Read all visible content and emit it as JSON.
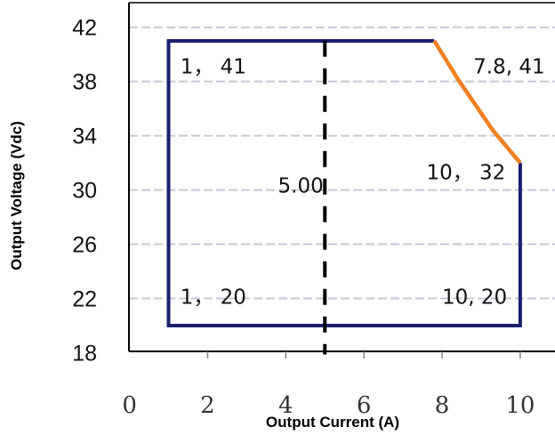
{
  "chart_data": {
    "type": "line",
    "xlabel": "Output Current (A)",
    "ylabel": "Output Voltage (Vdc)",
    "xlim": [
      0,
      10
    ],
    "ylim": [
      18,
      42
    ],
    "x_ticks": [
      "0",
      "2",
      "4",
      "6",
      "8",
      "10"
    ],
    "y_ticks": [
      "18",
      "22",
      "26",
      "30",
      "34",
      "38",
      "42"
    ],
    "grid": "horizontal dashed",
    "series": [
      {
        "color": "#1b1f6e",
        "points": [
          [
            7.8,
            41
          ],
          [
            1,
            41
          ],
          [
            1,
            20
          ],
          [
            10,
            20
          ],
          [
            10,
            32
          ]
        ]
      },
      {
        "color": "#f07f1f",
        "points": [
          [
            7.8,
            41
          ],
          [
            8.4,
            38.2
          ],
          [
            9.3,
            34.4
          ],
          [
            10,
            32
          ]
        ]
      }
    ],
    "reference_line": {
      "x": 5,
      "label": "5.00",
      "style": "dashed",
      "color": "#000000"
    },
    "annotations": [
      {
        "text": "1， 41",
        "x": 1.3,
        "y": 38.6
      },
      {
        "text": "7.8, 41",
        "x": 8.8,
        "y": 38.6
      },
      {
        "text": "10， 32",
        "x": 7.6,
        "y": 30.8
      },
      {
        "text": "5.00",
        "x": 3.8,
        "y": 29.8
      },
      {
        "text": "1， 20",
        "x": 1.3,
        "y": 21.6
      },
      {
        "text": "10, 20",
        "x": 8.0,
        "y": 21.6
      }
    ]
  }
}
